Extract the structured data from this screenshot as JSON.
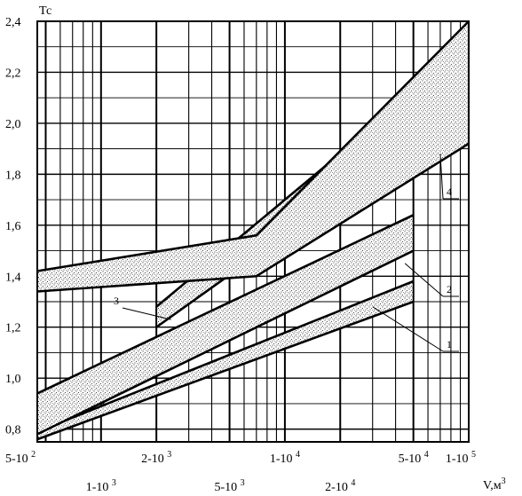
{
  "chart_data": {
    "type": "area",
    "ylabel": "Тс",
    "xlabel": "V,м",
    "xlabel_sup": "3",
    "x_scale": "log",
    "xlim": [
      450,
      100000
    ],
    "ylim": [
      0.75,
      2.4
    ],
    "grid": true,
    "y_ticks": [
      {
        "value": 0.8,
        "label": "0,8"
      },
      {
        "value": 1.0,
        "label": "1,0"
      },
      {
        "value": 1.2,
        "label": "1,2"
      },
      {
        "value": 1.4,
        "label": "1,4"
      },
      {
        "value": 1.6,
        "label": "1,6"
      },
      {
        "value": 1.8,
        "label": "1,8"
      },
      {
        "value": 2.0,
        "label": "2,0"
      },
      {
        "value": 2.2,
        "label": "2,2"
      },
      {
        "value": 2.4,
        "label": "2,4"
      }
    ],
    "x_ticks_top_row": [
      {
        "value": 500,
        "label": "5-10",
        "sup": "2"
      },
      {
        "value": 2000,
        "label": "2-10",
        "sup": "3"
      },
      {
        "value": 10000,
        "label": "1-10",
        "sup": "4"
      },
      {
        "value": 50000,
        "label": "5-10",
        "sup": "4"
      },
      {
        "value": 100000,
        "label": "1-10",
        "sup": "5"
      }
    ],
    "x_ticks_bottom_row": [
      {
        "value": 1000,
        "label": "1-10",
        "sup": "3"
      },
      {
        "value": 5000,
        "label": "5-10",
        "sup": "3"
      },
      {
        "value": 20000,
        "label": "2-10",
        "sup": "4"
      }
    ],
    "series": [
      {
        "name": "1",
        "upper": [
          {
            "x": 450,
            "y": 0.79
          },
          {
            "x": 50000,
            "y": 1.38
          }
        ],
        "lower": [
          {
            "x": 450,
            "y": 0.76
          },
          {
            "x": 50000,
            "y": 1.3
          }
        ]
      },
      {
        "name": "2",
        "upper": [
          {
            "x": 450,
            "y": 0.94
          },
          {
            "x": 50000,
            "y": 1.64
          }
        ],
        "lower": [
          {
            "x": 450,
            "y": 0.78
          },
          {
            "x": 50000,
            "y": 1.5
          }
        ]
      },
      {
        "name": "3",
        "upper": [
          {
            "x": 2000,
            "y": 1.28
          },
          {
            "x": 50000,
            "y": 2.12
          }
        ],
        "lower": [
          {
            "x": 2000,
            "y": 1.2
          },
          {
            "x": 50000,
            "y": 1.92
          }
        ]
      },
      {
        "name": "4",
        "upper": [
          {
            "x": 450,
            "y": 1.42
          },
          {
            "x": 7000,
            "y": 1.56
          },
          {
            "x": 100000,
            "y": 2.4
          }
        ],
        "lower": [
          {
            "x": 450,
            "y": 1.34
          },
          {
            "x": 7000,
            "y": 1.4
          },
          {
            "x": 100000,
            "y": 1.92
          }
        ]
      }
    ]
  }
}
